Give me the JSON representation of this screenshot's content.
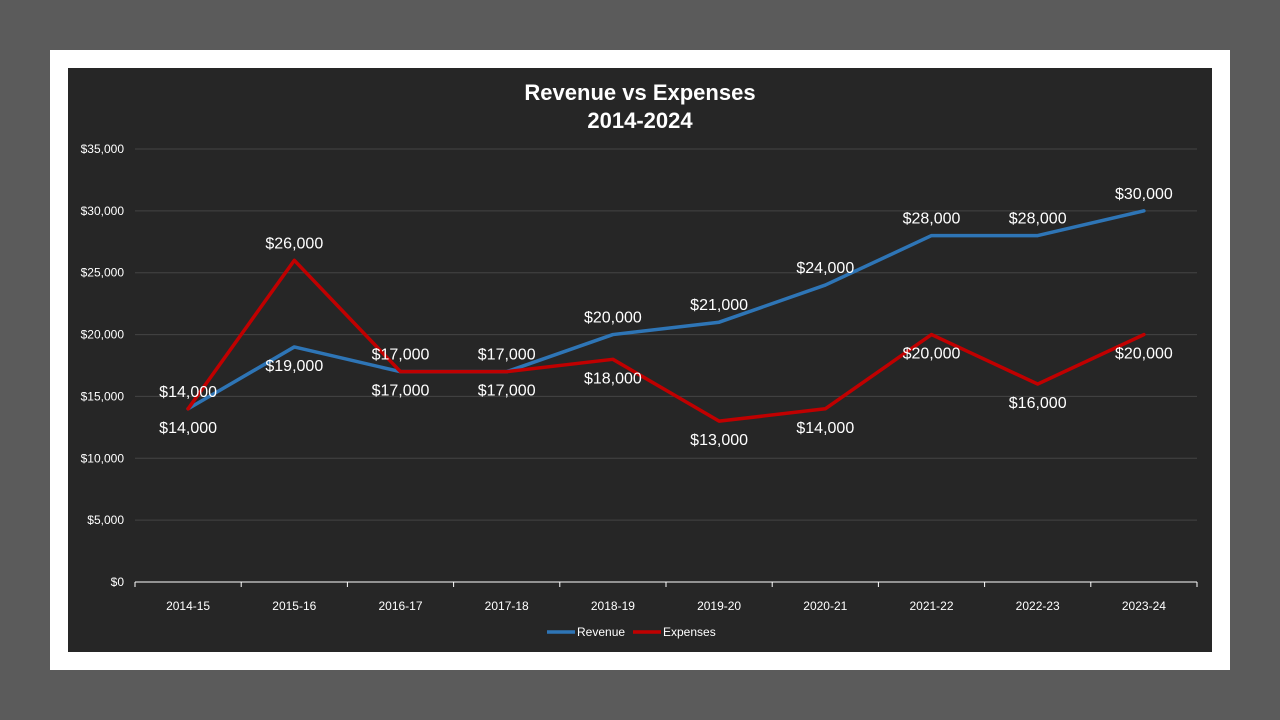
{
  "colors": {
    "background": "#5b5b5b",
    "frame": "#ffffff",
    "panel": "#262626",
    "gridline": "#444444",
    "axis": "#ffffff"
  },
  "chart_data": {
    "type": "line",
    "title_line1": "Revenue vs Expenses",
    "title_line2": "2014-2024",
    "xlabel": "",
    "ylabel": "",
    "categories": [
      "2014-15",
      "2015-16",
      "2016-17",
      "2017-18",
      "2018-19",
      "2019-20",
      "2020-21",
      "2021-22",
      "2022-23",
      "2023-24"
    ],
    "ylim": [
      0,
      35000
    ],
    "yticks": [
      0,
      5000,
      10000,
      15000,
      20000,
      25000,
      30000,
      35000
    ],
    "ytick_labels": [
      "$0",
      "$5,000",
      "$10,000",
      "$15,000",
      "$20,000",
      "$25,000",
      "$30,000",
      "$35,000"
    ],
    "grid": true,
    "legend_position": "bottom",
    "series": [
      {
        "name": "Revenue",
        "color": "#2e75b6",
        "values": [
          14000,
          19000,
          17000,
          17000,
          20000,
          21000,
          24000,
          28000,
          28000,
          30000
        ],
        "labels": [
          "$14,000",
          "$19,000",
          "$17,000",
          "$17,000",
          "$20,000",
          "$21,000",
          "$24,000",
          "$28,000",
          "$28,000",
          "$30,000"
        ],
        "label_pos": [
          "above",
          "below",
          "below",
          "above",
          "above",
          "above",
          "above",
          "above",
          "above",
          "above"
        ]
      },
      {
        "name": "Expenses",
        "color": "#c00000",
        "values": [
          14000,
          26000,
          17000,
          17000,
          18000,
          13000,
          14000,
          20000,
          16000,
          20000
        ],
        "labels": [
          "$14,000",
          "$26,000",
          "$17,000",
          "$17,000",
          "$18,000",
          "$13,000",
          "$14,000",
          "$20,000",
          "$16,000",
          "$20,000"
        ],
        "label_pos": [
          "below",
          "above",
          "above",
          "below",
          "below",
          "below",
          "below",
          "below",
          "below",
          "below"
        ]
      }
    ]
  }
}
